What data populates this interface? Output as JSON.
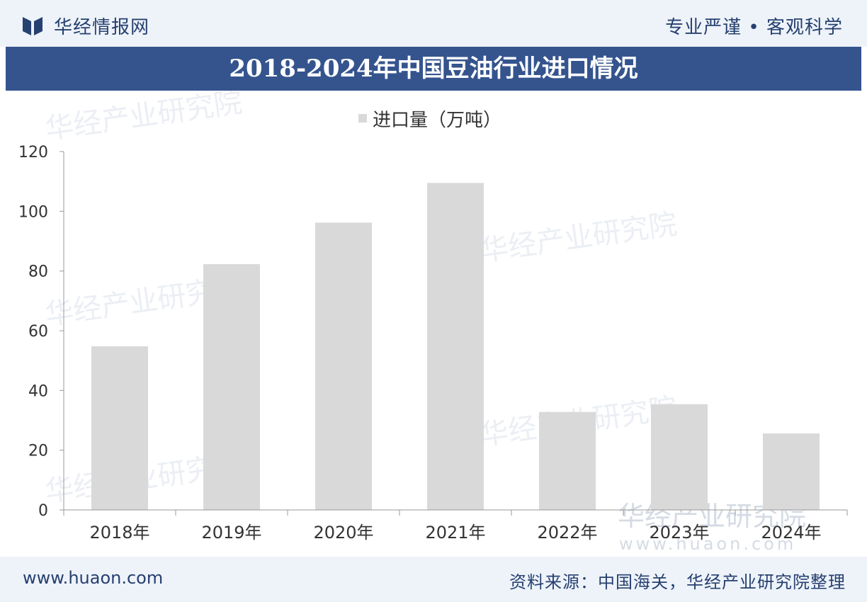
{
  "header": {
    "brand": "华经情报网",
    "slogan": "专业严谨 • 客观科学"
  },
  "title": "2018-2024年中国豆油行业进口情况",
  "legend": {
    "label": "进口量（万吨）"
  },
  "watermark": {
    "text": "华经产业研究院",
    "url": "www.huaon.com"
  },
  "footer": {
    "site": "www.huaon.com",
    "source": "资料来源：中国海关，华经产业研究院整理"
  },
  "colors": {
    "bar": "#d9d9d9",
    "header_bg": "#eef3fa",
    "title_bg": "#35548e",
    "text_dark": "#26406f"
  },
  "chart_data": {
    "type": "bar",
    "categories": [
      "2018年",
      "2019年",
      "2020年",
      "2021年",
      "2022年",
      "2023年",
      "2024年"
    ],
    "series": [
      {
        "name": "进口量（万吨）",
        "values": [
          54.8,
          82.3,
          96.2,
          109.5,
          32.8,
          35.4,
          25.6
        ]
      }
    ],
    "ylim": [
      0,
      120
    ],
    "yticks": [
      0,
      20,
      40,
      60,
      80,
      100,
      120
    ],
    "legend_position": "top-center",
    "grid": false
  }
}
